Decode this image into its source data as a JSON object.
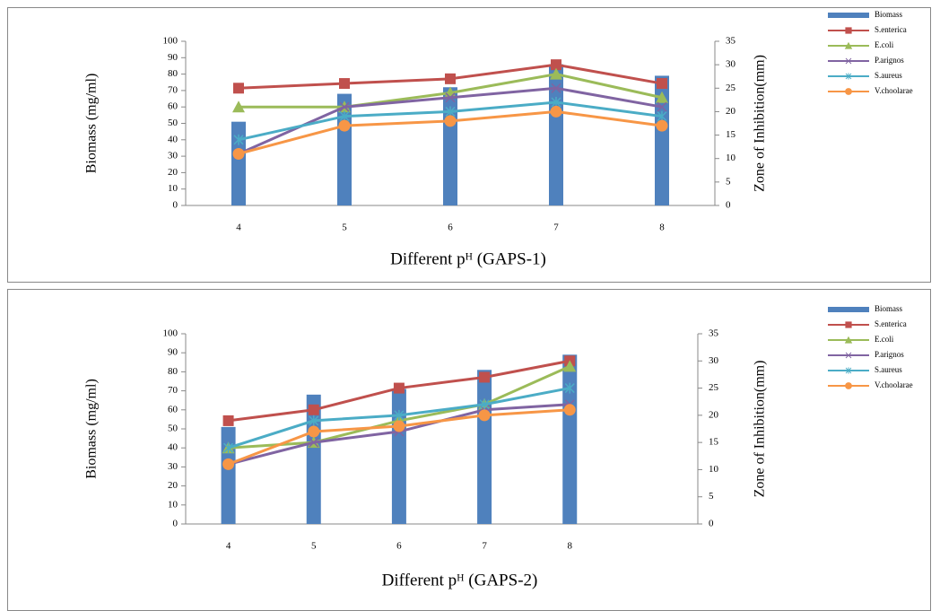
{
  "chart_data": [
    {
      "type": "combo",
      "x_label": "Different pᴴ (GAPS-1)",
      "y_label": "Biomass (mg/ml)",
      "y2_label": "Zone of  Inhibition(mm)",
      "categories": [
        "4",
        "5",
        "6",
        "7",
        "8"
      ],
      "ylim": [
        0,
        100
      ],
      "yticks": [
        0,
        10,
        20,
        30,
        40,
        50,
        60,
        70,
        80,
        90,
        100
      ],
      "y2lim": [
        0,
        35
      ],
      "y2ticks": [
        0,
        5,
        10,
        15,
        20,
        25,
        30,
        35
      ],
      "series": [
        {
          "name": "Biomass",
          "kind": "bar",
          "color": "#4f81bd",
          "axis": "y",
          "values": [
            51,
            68,
            72,
            86,
            79
          ]
        },
        {
          "name": "S.enterica",
          "kind": "line",
          "marker": "square",
          "color": "#c0504d",
          "axis": "y2",
          "values": [
            25,
            26,
            27,
            30,
            26
          ]
        },
        {
          "name": "E.coli",
          "kind": "line",
          "marker": "triangle",
          "color": "#9bbb59",
          "axis": "y2",
          "values": [
            21,
            21,
            24,
            28,
            23
          ]
        },
        {
          "name": "P.arignos",
          "kind": "line",
          "marker": "cross",
          "color": "#8064a2",
          "axis": "y2",
          "values": [
            11,
            21,
            23,
            25,
            21
          ]
        },
        {
          "name": "S.aureus",
          "kind": "line",
          "marker": "star",
          "color": "#4bacc6",
          "axis": "y2",
          "values": [
            14,
            19,
            20,
            22,
            19
          ]
        },
        {
          "name": "V.choolarae",
          "kind": "line",
          "marker": "circle",
          "color": "#f79646",
          "axis": "y2",
          "values": [
            11,
            17,
            18,
            20,
            17
          ]
        }
      ]
    },
    {
      "type": "combo",
      "x_label": "Different pᴴ (GAPS-2)",
      "y_label": "Biomass (mg/ml)",
      "y2_label": "Zone of  Inhibition(mm)",
      "categories": [
        "4",
        "5",
        "6",
        "7",
        "8",
        null
      ],
      "ylim": [
        0,
        100
      ],
      "yticks": [
        0,
        10,
        20,
        30,
        40,
        50,
        60,
        70,
        80,
        90,
        100
      ],
      "y2lim": [
        0,
        35
      ],
      "y2ticks": [
        0,
        5,
        10,
        15,
        20,
        25,
        30,
        35
      ],
      "series": [
        {
          "name": "Biomass",
          "kind": "bar",
          "color": "#4f81bd",
          "axis": "y",
          "values": [
            51,
            68,
            71,
            81,
            89,
            null
          ]
        },
        {
          "name": "S.enterica",
          "kind": "line",
          "marker": "square",
          "color": "#c0504d",
          "axis": "y2",
          "values": [
            19,
            21,
            25,
            27,
            30,
            null
          ]
        },
        {
          "name": "E.coli",
          "kind": "line",
          "marker": "triangle",
          "color": "#9bbb59",
          "axis": "y2",
          "values": [
            14,
            15,
            19,
            22,
            29,
            null
          ]
        },
        {
          "name": "P.arignos",
          "kind": "line",
          "marker": "cross",
          "color": "#8064a2",
          "axis": "y2",
          "values": [
            11,
            15,
            17,
            21,
            22,
            null
          ]
        },
        {
          "name": "S.aureus",
          "kind": "line",
          "marker": "star",
          "color": "#4bacc6",
          "axis": "y2",
          "values": [
            14,
            19,
            20,
            22,
            25,
            null
          ]
        },
        {
          "name": "V.choolarae",
          "kind": "line",
          "marker": "circle",
          "color": "#f79646",
          "axis": "y2",
          "values": [
            11,
            17,
            18,
            20,
            21,
            null
          ]
        }
      ]
    }
  ]
}
